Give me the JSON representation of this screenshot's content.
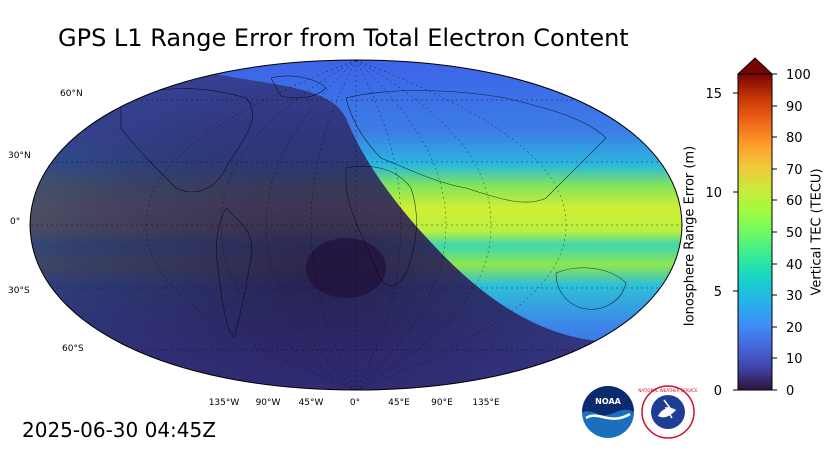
{
  "title": "GPS L1 Range Error from Total Electron Content",
  "timestamp": "2025-06-30 04:45Z",
  "map": {
    "projection": "robinson",
    "lat_labels": [
      "60°N",
      "30°N",
      "0°",
      "30°S",
      "60°S"
    ],
    "lon_labels": [
      "135°W",
      "90°W",
      "45°W",
      "0°",
      "45°E",
      "90°E",
      "135°E"
    ],
    "night_side": "shaded",
    "colors": {
      "ocean_low": "#3b4ccf",
      "equatorial_band": "#c6ee3a",
      "mid_band": "#2bb6e0",
      "night": "#2b1d57"
    }
  },
  "colorbar": {
    "left_label": "Ionosphere Range Error (m)",
    "right_label": "Vertical TEC (TECU)",
    "left_ticks": [
      "0",
      "5",
      "10",
      "15"
    ],
    "right_ticks": [
      "0",
      "10",
      "20",
      "30",
      "40",
      "50",
      "60",
      "70",
      "80",
      "90",
      "100"
    ],
    "extend": "max",
    "colormap": "turbo"
  },
  "logos": {
    "noaa_text": "NOAA",
    "nws_text": "NATIONAL WEATHER SERVICE"
  }
}
